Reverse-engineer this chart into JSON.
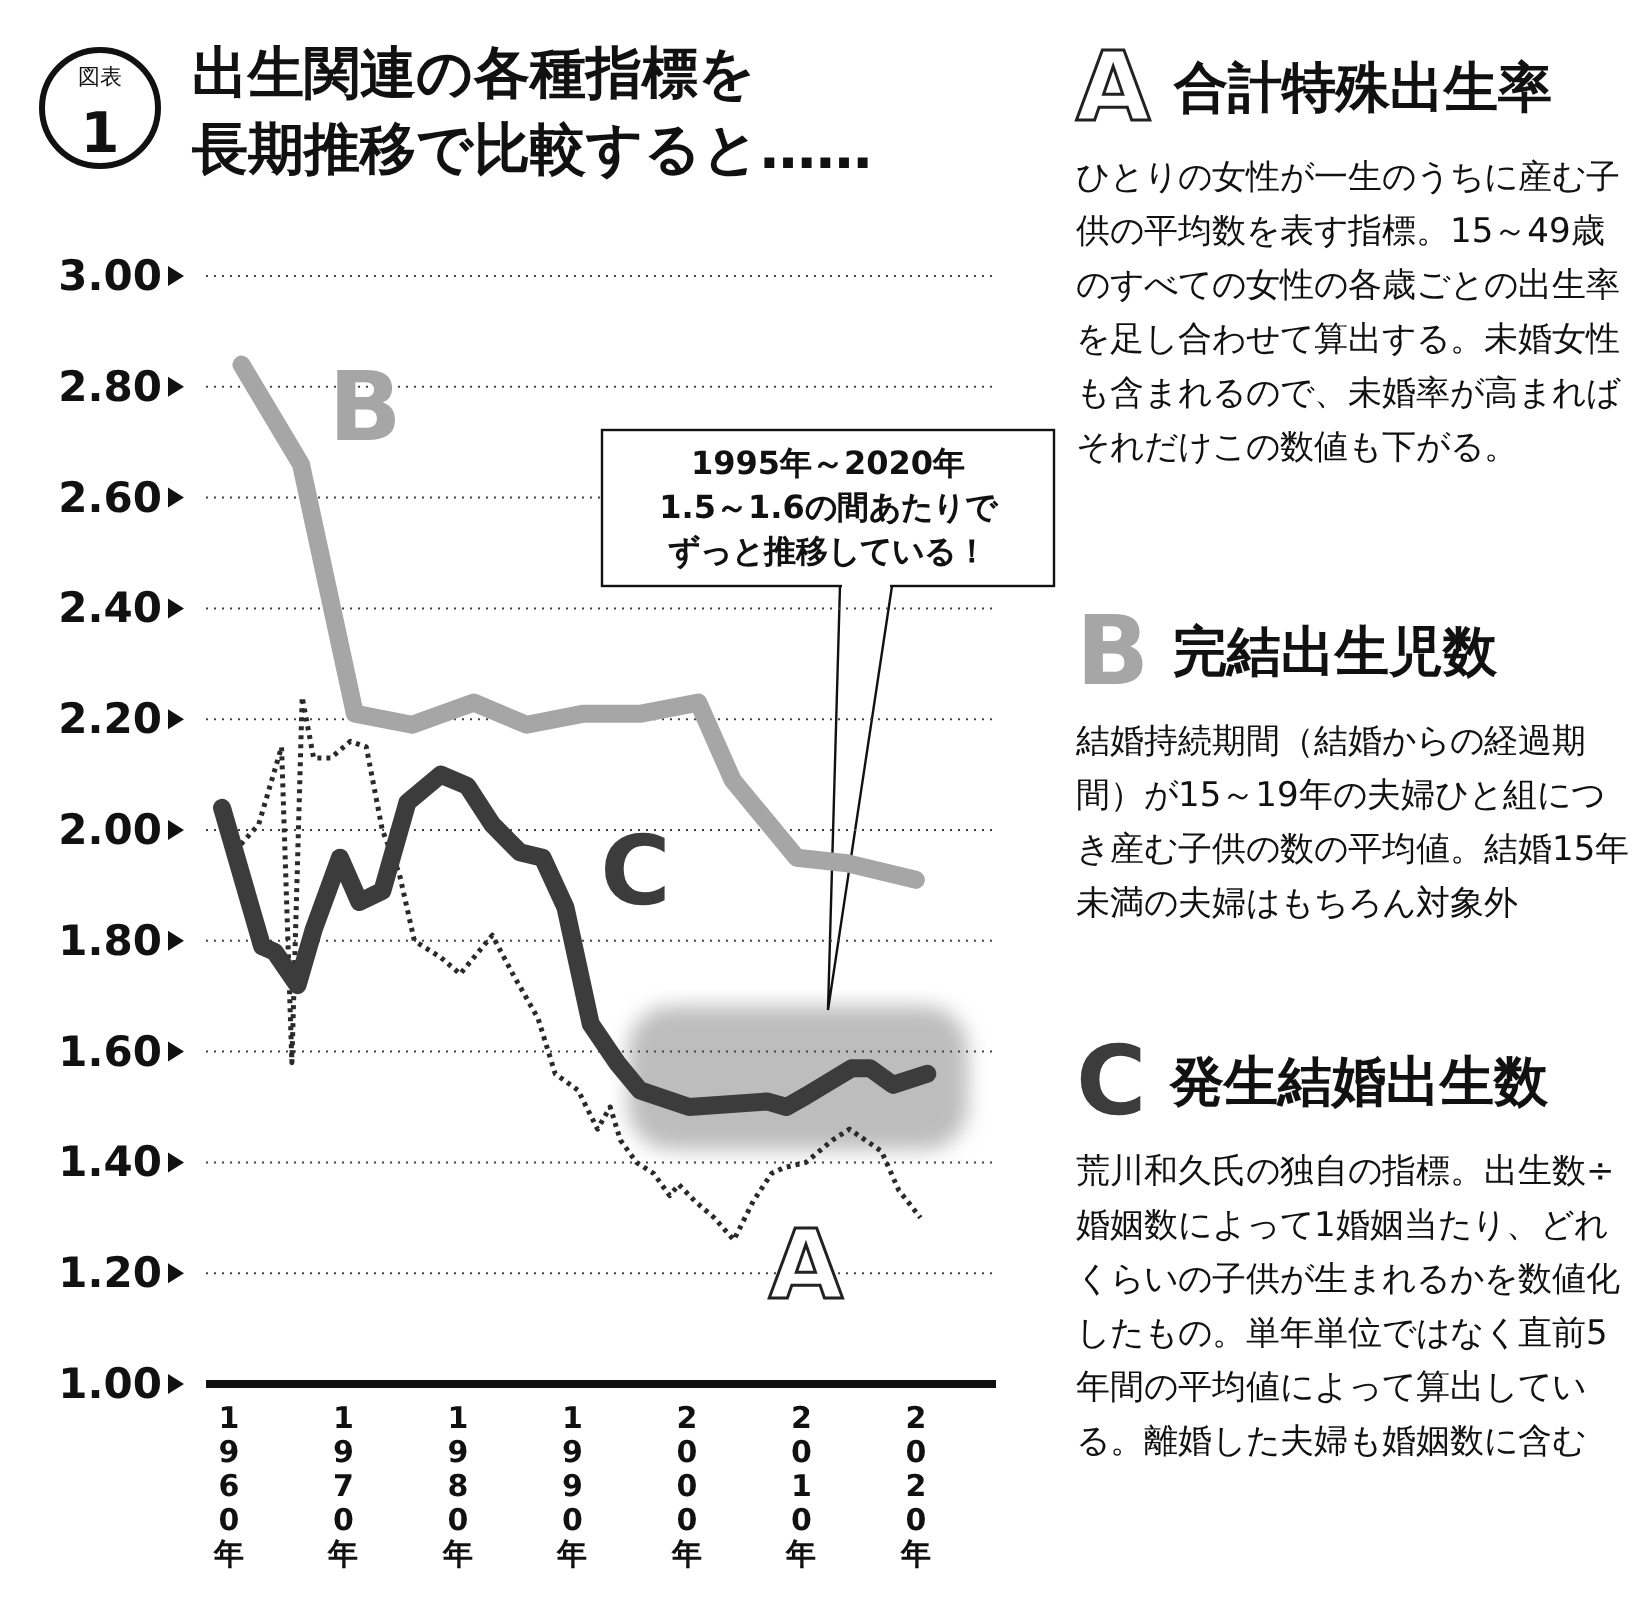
{
  "chart_data": {
    "type": "line",
    "title": "出生関連の各種指標を長期推移で比較すると……",
    "xlim": [
      1958,
      2027
    ],
    "xticks": [
      {
        "value": 1960,
        "label": "1960年"
      },
      {
        "value": 1970,
        "label": "1970年"
      },
      {
        "value": 1980,
        "label": "1980年"
      },
      {
        "value": 1990,
        "label": "1990年"
      },
      {
        "value": 2000,
        "label": "2000年"
      },
      {
        "value": 2010,
        "label": "2010年"
      },
      {
        "value": 2020,
        "label": "2020年"
      }
    ],
    "ylim": [
      1,
      3
    ],
    "yticks": [
      {
        "value": 1,
        "label": "1.00"
      },
      {
        "value": 1.2,
        "label": "1.20"
      },
      {
        "value": 1.4,
        "label": "1.40"
      },
      {
        "value": 1.6,
        "label": "1.60"
      },
      {
        "value": 1.8,
        "label": "1.80"
      },
      {
        "value": 2,
        "label": "2.00"
      },
      {
        "value": 2.2,
        "label": "2.20"
      },
      {
        "value": 2.4,
        "label": "2.40"
      },
      {
        "value": 2.6,
        "label": "2.60"
      },
      {
        "value": 2.8,
        "label": "2.80"
      },
      {
        "value": 3,
        "label": "3.00"
      }
    ],
    "grid": "y",
    "series": [
      {
        "name": "A",
        "color": "#2a2a2a",
        "line_style": "dotted",
        "x": [
          1960,
          1962.6,
          1964.6,
          1965.5,
          1966.4,
          1967.4,
          1968.9,
          1970.6,
          1972,
          1973.4,
          1974.9,
          1976.2,
          1978.5,
          1980.2,
          1983,
          1984.8,
          1987,
          1988.5,
          1990.5,
          1992.2,
          1993.3,
          1994.2,
          1995.6,
          1997.1,
          1998.5,
          1999.3,
          2000.7,
          2002.4,
          2004.1,
          2005.8,
          2007.4,
          2008.4,
          2010.4,
          2012.7,
          2014.2,
          2015.6,
          2017,
          2018.5,
          2020.4
        ],
        "values": [
          1.95,
          2.01,
          2.15,
          1.58,
          2.24,
          2.13,
          2.13,
          2.16,
          2.15,
          2.0,
          1.92,
          1.8,
          1.77,
          1.74,
          1.81,
          1.74,
          1.66,
          1.56,
          1.53,
          1.46,
          1.5,
          1.44,
          1.4,
          1.38,
          1.34,
          1.36,
          1.33,
          1.3,
          1.26,
          1.33,
          1.38,
          1.39,
          1.4,
          1.44,
          1.46,
          1.44,
          1.42,
          1.35,
          1.3
        ]
      },
      {
        "name": "B",
        "color": "#a6a6a6",
        "line_style": "solid",
        "x": [
          1961.1,
          1966.3,
          1971,
          1976,
          1981.4,
          1986,
          1991,
          1996,
          2001,
          2004,
          2009.6,
          2014,
          2020
        ],
        "values": [
          2.84,
          2.66,
          2.21,
          2.19,
          2.23,
          2.19,
          2.21,
          2.21,
          2.23,
          2.09,
          1.95,
          1.94,
          1.91
        ]
      },
      {
        "name": "C",
        "color": "#3c3c3c",
        "line_style": "solid",
        "x": [
          1959.4,
          1962.9,
          1964,
          1966,
          1967.4,
          1969.7,
          1971.4,
          1973.4,
          1975.6,
          1978.5,
          1980.8,
          1983,
          1985.4,
          1987.4,
          1989.4,
          1991.6,
          1993.9,
          1995.9,
          2000.2,
          2007,
          2008.7,
          2010.4,
          2014.4,
          2016,
          2018,
          2021
        ],
        "values": [
          2.04,
          1.79,
          1.78,
          1.72,
          1.82,
          1.95,
          1.87,
          1.89,
          2.05,
          2.1,
          2.08,
          2.01,
          1.96,
          1.95,
          1.86,
          1.65,
          1.58,
          1.53,
          1.5,
          1.51,
          1.5,
          1.52,
          1.57,
          1.57,
          1.54,
          1.56
        ]
      }
    ],
    "annotations": [
      "1995年～2020年1.5～1.6の間あたりでずっと推移している！",
      "図表 1",
      "合計特殊出生率",
      "ひとりの女性が一生のうちに産む子供の平均数を表す指標。15～49歳のすべての女性の各歳ごとの出生率を足し合わせて算出する。未婚女性も含まれるので、未婚率が高まればそれだけこの数値も下がる。",
      "完結出生児数",
      "結婚持続期間（結婚からの経過期間）が15～19年の夫婦ひと組につき産む子供の数の平均値。結婚15年未満の夫婦はもちろん対象外",
      "発生結婚出生数",
      "荒川和久氏の独自の指標。出生数÷婚姻数によって1婚姻当たり、どれくらいの子供が生まれるかを数値化したもの。単年単位ではなく直前5年間の平均値によって算出している。離婚した夫婦も婚姻数に含む"
    ]
  }
}
